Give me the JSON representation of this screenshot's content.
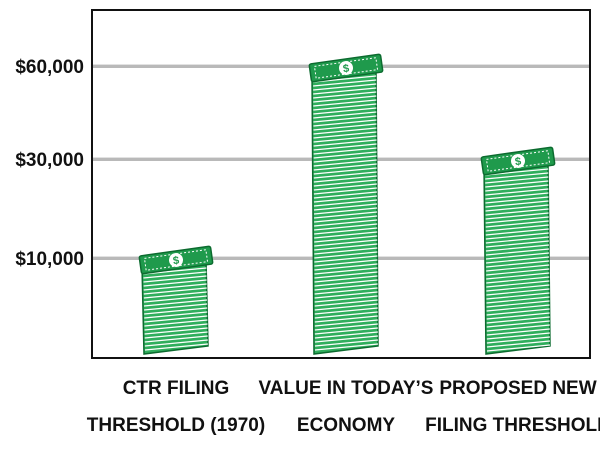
{
  "chart_data": {
    "type": "bar",
    "title": "",
    "xlabel": "",
    "ylabel": "",
    "categories": [
      [
        "CTR FILING",
        "THRESHOLD (1970)"
      ],
      [
        "VALUE IN TODAY’S",
        "ECONOMY"
      ],
      [
        "PROPOSED NEW",
        "FILING THRESHOLD"
      ]
    ],
    "values": [
      10000,
      60000,
      30000
    ],
    "yticks": [
      {
        "value": 10000,
        "label": "$10,000"
      },
      {
        "value": 30000,
        "label": "$30,000"
      },
      {
        "value": 60000,
        "label": "$60,000"
      }
    ],
    "grid": true,
    "legend": "none",
    "colors": {
      "bill_face": "#1f9a4c",
      "bill_edge": "#0c6b2f",
      "bill_stack": "#2fae5c",
      "bill_stripe": "#ffffff",
      "gridline": "#b9b9b9",
      "axis": "#111111"
    },
    "mark_icon": "dollar-bill-stack-icon"
  }
}
